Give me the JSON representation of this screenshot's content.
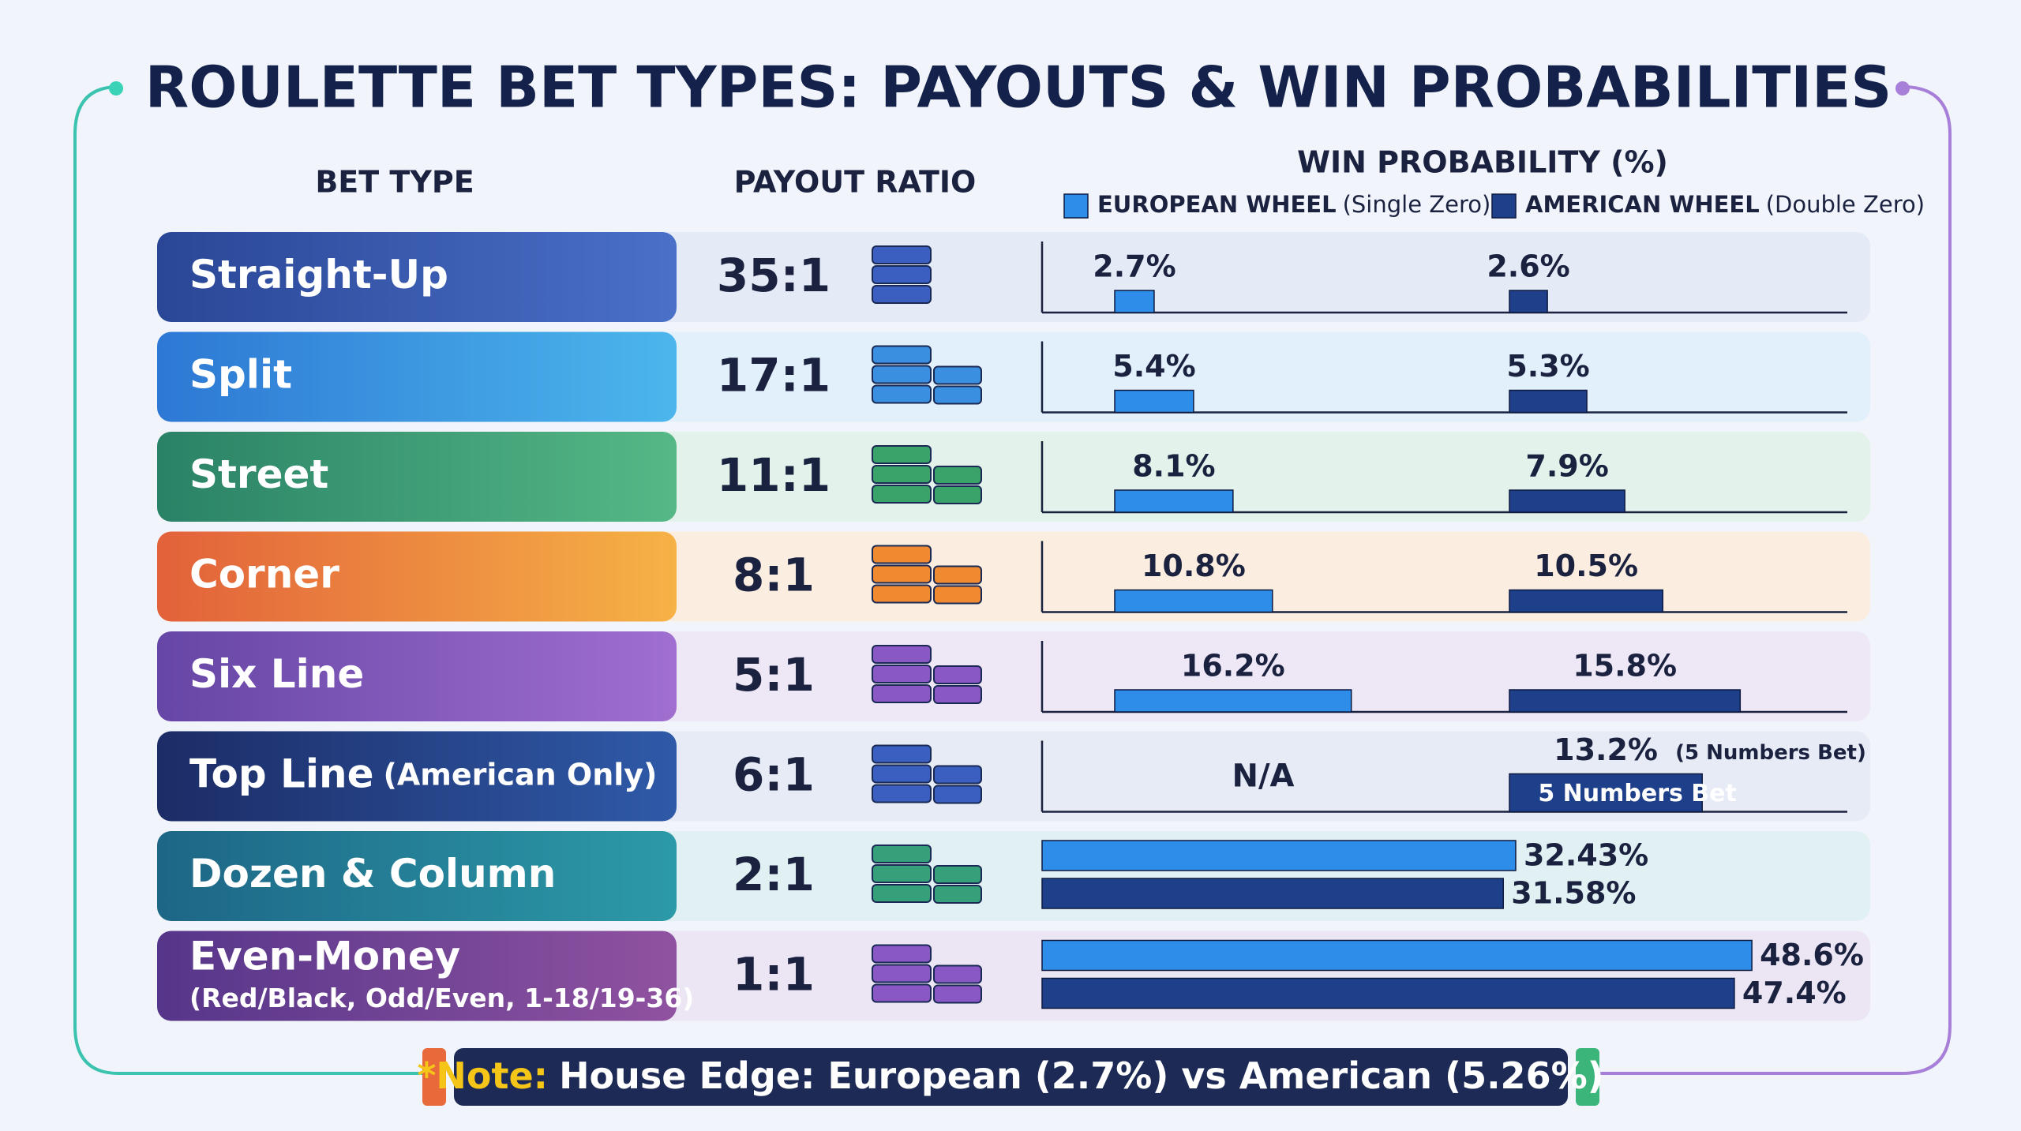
{
  "title": "ROULETTE BET TYPES: PAYOUTS & WIN PROBABILITIES",
  "headers": {
    "bet_type": "BET TYPE",
    "payout": "PAYOUT RATIO",
    "probability": "WIN PROBABILITY (%)"
  },
  "legend": [
    {
      "label": "EUROPEAN WHEEL",
      "note": "(Single Zero)",
      "color": "#2e8de8"
    },
    {
      "label": "AMERICAN WHEEL",
      "note": "(Double Zero)",
      "color": "#1e3f8a"
    }
  ],
  "table": {
    "rows": [
      {
        "name": "Straight-Up",
        "payout": "35:1",
        "european": 2.7,
        "european_label": "2.7%",
        "american": 2.6,
        "american_label": "2.6%"
      },
      {
        "name": "Split",
        "payout": "17:1",
        "european": 5.4,
        "european_label": "5.4%",
        "american": 5.3,
        "american_label": "5.3%"
      },
      {
        "name": "Street",
        "payout": "11:1",
        "european": 8.1,
        "european_label": "8.1%",
        "american": 7.9,
        "american_label": "7.9%"
      },
      {
        "name": "Corner",
        "payout": "8:1",
        "european": 10.8,
        "european_label": "10.8%",
        "american": 10.5,
        "american_label": "10.5%"
      },
      {
        "name": "Six Line",
        "payout": "5:1",
        "european": 16.2,
        "european_label": "16.2%",
        "american": 15.8,
        "american_label": "15.8%"
      },
      {
        "name": "Top Line",
        "name_note": "(American Only)",
        "payout": "6:1",
        "european": null,
        "european_label": "N/A",
        "american": 13.2,
        "american_label": "13.2%",
        "american_note": "(5 Numbers Bet)",
        "american_bar_text": "5 Numbers Bet"
      },
      {
        "name": "Dozen & Column",
        "payout": "2:1",
        "european": 32.43,
        "european_label": "32.43%",
        "american": 31.58,
        "american_label": "31.58%"
      },
      {
        "name": "Even-Money",
        "subtitle": "(Red/Black, Odd/Even, 1-18/19-36)",
        "payout": "1:1",
        "european": 48.6,
        "european_label": "48.6%",
        "american": 47.4,
        "american_label": "47.4%"
      }
    ]
  },
  "note": {
    "lead": "*Note:",
    "text": "House Edge: European (2.7%) vs American (5.26%)"
  }
}
